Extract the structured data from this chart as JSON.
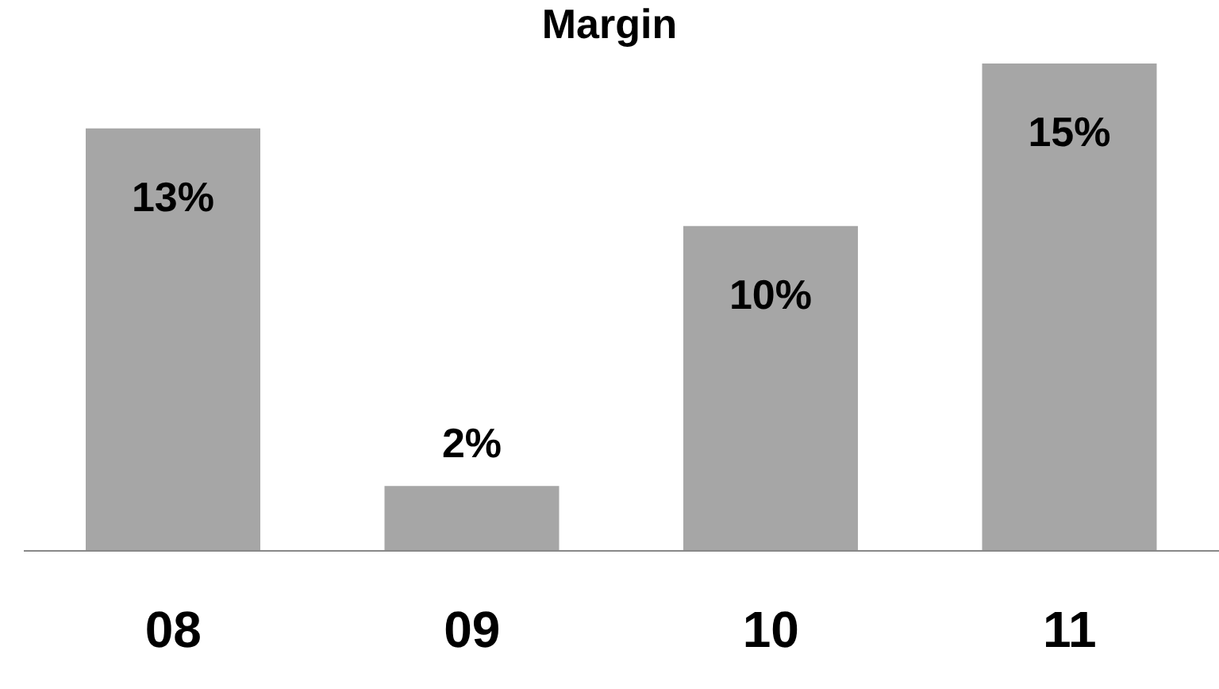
{
  "chart_data": {
    "type": "bar",
    "title": "Margin",
    "categories": [
      "08",
      "09",
      "10",
      "11"
    ],
    "values": [
      13,
      2,
      10,
      15
    ],
    "value_labels": [
      "13%",
      "2%",
      "10%",
      "15%"
    ],
    "color": "#a6a6a6"
  }
}
